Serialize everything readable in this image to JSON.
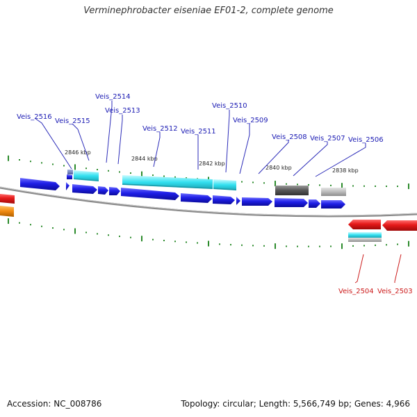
{
  "title": "Verminephrobacter eiseniae EF01-2, complete genome",
  "footer": {
    "accession_label": "Accession:",
    "accession": "NC_008786",
    "topology_label": "Topology:",
    "topology": "circular",
    "length_label": "Length:",
    "length": "5,566,749 bp",
    "genes_label": "Genes:",
    "genes": "4,966"
  },
  "colors": {
    "forward_gene": "#1f1fe6",
    "reverse_gene": "#e61a1a",
    "forward_label": "#1a1ab3",
    "reverse_label": "#cc1a1a",
    "rna_cyan": "#33e0f0",
    "tick": "#2a8a2a",
    "backbone": "#8a8a8a"
  },
  "ticks": [
    "2846 kbp",
    "2844 kbp",
    "2842 kbp",
    "2840 kbp",
    "2838 kbp"
  ],
  "labels_forward": [
    "Veis_2516",
    "Veis_2515",
    "Veis_2514",
    "Veis_2513",
    "Veis_2512",
    "Veis_2511",
    "Veis_2510",
    "Veis_2509",
    "Veis_2508",
    "Veis_2507",
    "Veis_2506"
  ],
  "labels_reverse": [
    "Veis_2504",
    "Veis_2503"
  ]
}
